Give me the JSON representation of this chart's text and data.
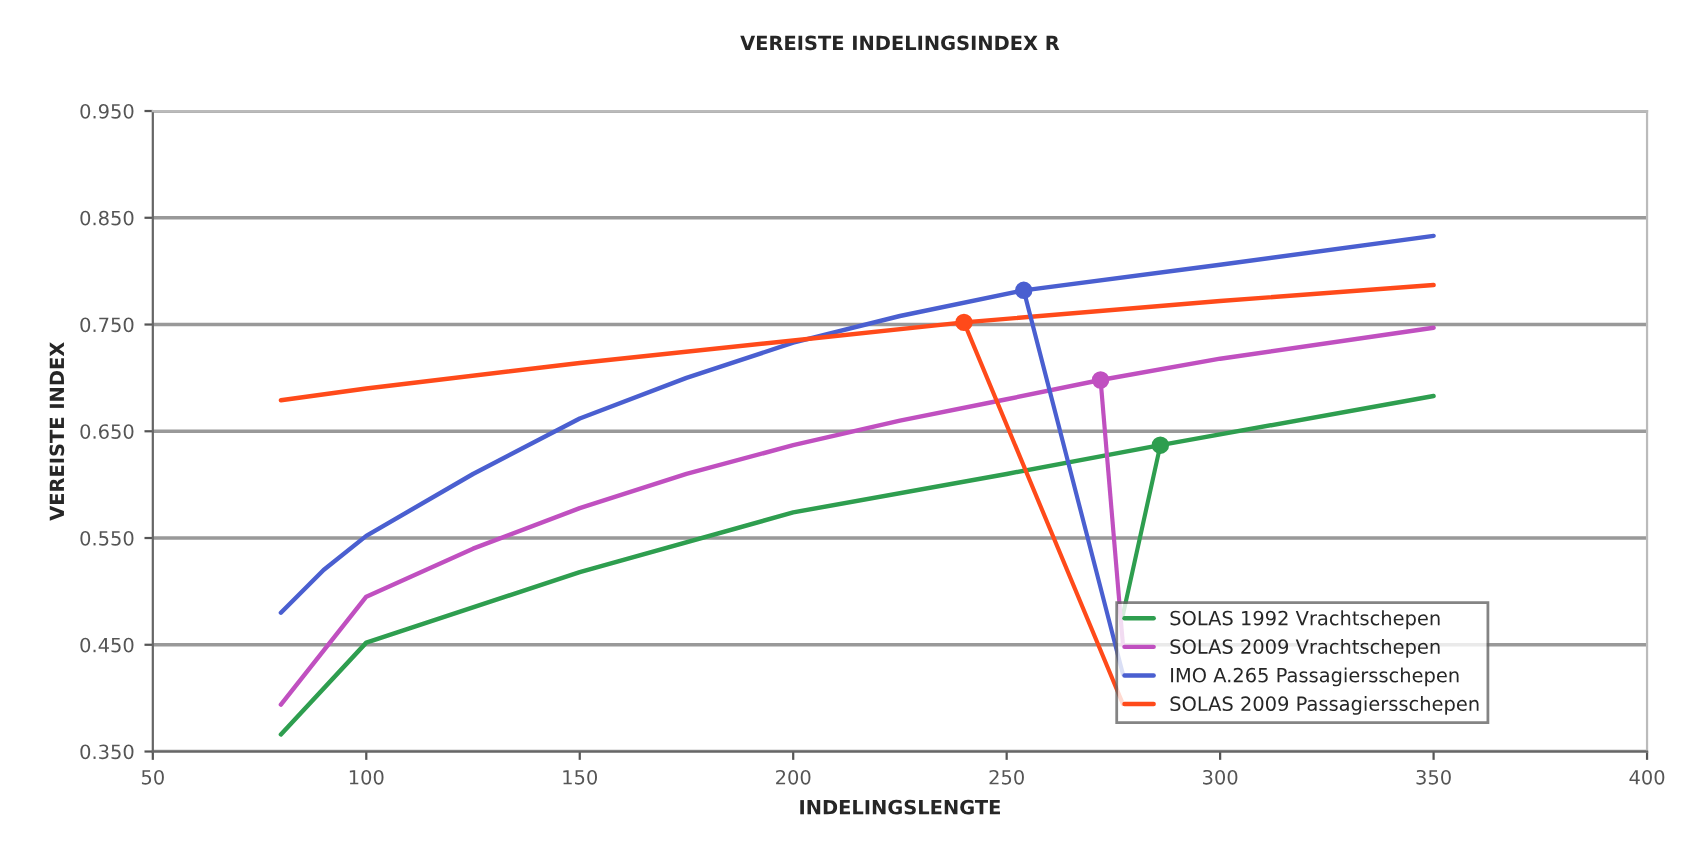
{
  "chart_data": {
    "type": "line",
    "title": "VEREISTE INDELINGSINDEX R",
    "xlabel": "INDELINGSLENGTE",
    "ylabel": "VEREISTE INDEX",
    "xlim": [
      50,
      400
    ],
    "xticks": [
      50,
      100,
      150,
      200,
      250,
      300,
      350,
      400
    ],
    "ylim": [
      0.35,
      0.95
    ],
    "yticks": [
      {
        "value": 0.35,
        "label": "0.350"
      },
      {
        "value": 0.45,
        "label": "0.450"
      },
      {
        "value": 0.55,
        "label": "0.550"
      },
      {
        "value": 0.65,
        "label": "0.650"
      },
      {
        "value": 0.75,
        "label": "0.750"
      },
      {
        "value": 0.85,
        "label": "0.850"
      },
      {
        "value": 0.95,
        "label": "0.950"
      }
    ],
    "grid": "y",
    "legend": "bottom right",
    "marker": "none",
    "series": [
      {
        "name": "SOLAS 1992 Vrachtschepen",
        "color": "#2e9e4f",
        "x": [
          80,
          100,
          150,
          200,
          250,
          286,
          350
        ],
        "values": [
          0.366,
          0.452,
          0.518,
          0.574,
          0.61,
          0.637,
          0.683
        ]
      },
      {
        "name": "SOLAS 2009 Vrachtschepen",
        "color": "#c050c0",
        "x": [
          80,
          100,
          125,
          150,
          175,
          200,
          225,
          250,
          272,
          300,
          350
        ],
        "values": [
          0.394,
          0.495,
          0.54,
          0.578,
          0.61,
          0.637,
          0.66,
          0.68,
          0.698,
          0.718,
          0.747
        ]
      },
      {
        "name": "IMO A.265 Passagiersschepen",
        "color": "#4a5fd0",
        "x": [
          80,
          90,
          100,
          125,
          150,
          175,
          200,
          225,
          254,
          300,
          350
        ],
        "values": [
          0.48,
          0.52,
          0.552,
          0.61,
          0.662,
          0.7,
          0.733,
          0.758,
          0.782,
          0.806,
          0.833
        ]
      },
      {
        "name": "SOLAS 2009 Passagiersschepen",
        "color": "#ff4a1a",
        "x": [
          80,
          100,
          150,
          200,
          240,
          300,
          350
        ],
        "values": [
          0.679,
          0.69,
          0.714,
          0.735,
          0.752,
          0.772,
          0.787
        ]
      },
      {
        "type": "scatter",
        "marker": "circle",
        "color": "#2e9e4f",
        "x": [
          286
        ],
        "values": [
          0.637
        ]
      },
      {
        "type": "scatter",
        "marker": "circle",
        "color": "#c050c0",
        "x": [
          272
        ],
        "values": [
          0.698
        ]
      },
      {
        "type": "scatter",
        "marker": "circle",
        "color": "#4a5fd0",
        "x": [
          254
        ],
        "values": [
          0.782
        ]
      },
      {
        "type": "scatter",
        "marker": "circle",
        "color": "#ff4a1a",
        "x": [
          240
        ],
        "values": [
          0.752
        ]
      }
    ]
  }
}
